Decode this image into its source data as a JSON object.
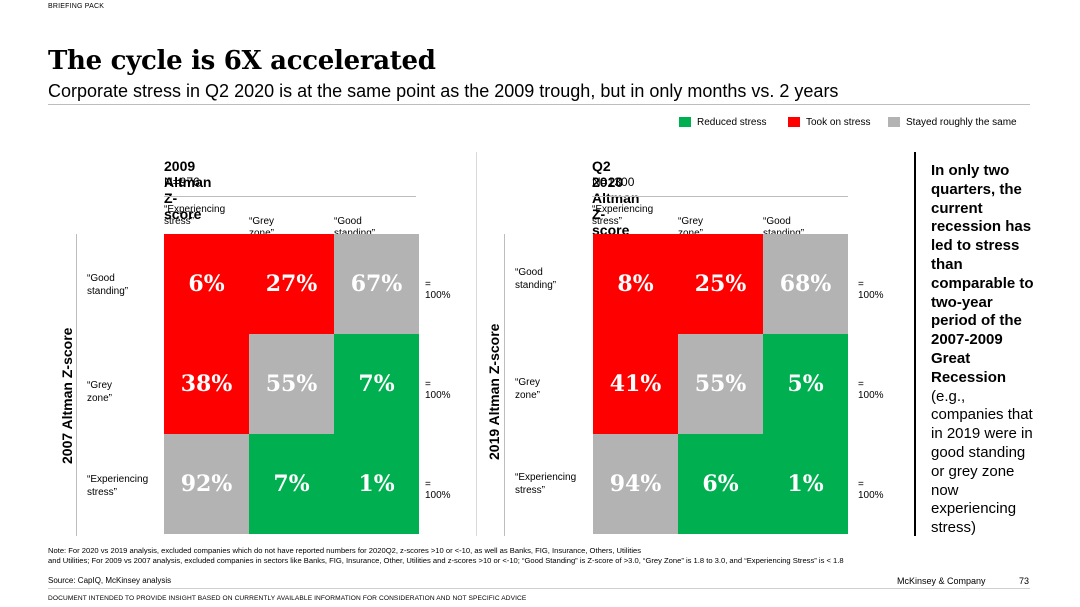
{
  "header": {
    "tag": "BRIEFING PACK",
    "title": "The cycle is 6X accelerated",
    "subtitle": "Corporate stress in Q2 2020 is at the same point as the 2009 trough, but in only months vs. 2 years"
  },
  "legend": {
    "reduced": {
      "label": "Reduced stress",
      "color": "#00b050"
    },
    "took": {
      "label": "Took on stress",
      "color": "#ff0000"
    },
    "same": {
      "label": "Stayed roughly the same",
      "color": "#b3b3b3"
    }
  },
  "matrices": [
    {
      "title": "2009 Altman Z-score",
      "n": "N=976",
      "col_headers": [
        "“Experiencing stress”",
        "“Grey zone”",
        "“Good standing”"
      ],
      "col_header_lines": [
        [
          "“Experiencing",
          "stress”"
        ],
        [
          "“Grey zone”"
        ],
        [
          "“Good standing”"
        ]
      ],
      "row_axis": "2007 Altman Z-score",
      "row_labels": [
        [
          "“Good",
          "standing”"
        ],
        [
          "“Grey zone”"
        ],
        [
          "“Experiencing",
          "stress”"
        ]
      ],
      "cells": [
        [
          {
            "v": "6%",
            "c": "took"
          },
          {
            "v": "27%",
            "c": "took"
          },
          {
            "v": "67%",
            "c": "same"
          }
        ],
        [
          {
            "v": "38%",
            "c": "took"
          },
          {
            "v": "55%",
            "c": "same"
          },
          {
            "v": "7%",
            "c": "reduced"
          }
        ],
        [
          {
            "v": "92%",
            "c": "same"
          },
          {
            "v": "7%",
            "c": "reduced"
          },
          {
            "v": "1%",
            "c": "reduced"
          }
        ]
      ],
      "row_totals": [
        "= 100%",
        "= 100%",
        "= 100%"
      ]
    },
    {
      "title": "Q2 2020 Altman Z-score",
      "n": "N=1300",
      "col_headers": [
        "“Experiencing stress”",
        "“Grey zone”",
        "“Good standing”"
      ],
      "col_header_lines": [
        [
          "“Experiencing",
          "stress”"
        ],
        [
          "“Grey zone”"
        ],
        [
          "“Good standing”"
        ]
      ],
      "row_axis": "2019 Altman Z-score",
      "row_labels": [
        [
          "“Good",
          "standing”"
        ],
        [
          "“Grey zone”"
        ],
        [
          "“Experiencing",
          "stress”"
        ]
      ],
      "cells": [
        [
          {
            "v": "8%",
            "c": "took"
          },
          {
            "v": "25%",
            "c": "took"
          },
          {
            "v": "68%",
            "c": "same"
          }
        ],
        [
          {
            "v": "41%",
            "c": "took"
          },
          {
            "v": "55%",
            "c": "same"
          },
          {
            "v": "5%",
            "c": "reduced"
          }
        ],
        [
          {
            "v": "94%",
            "c": "same"
          },
          {
            "v": "6%",
            "c": "reduced"
          },
          {
            "v": "1%",
            "c": "reduced"
          }
        ]
      ],
      "row_totals": [
        "= 100%",
        "= 100%",
        "= 100%"
      ]
    }
  ],
  "callout": {
    "bold": "In only two quarters, the current recession has led to stress than comparable to two-year period of the 2007-2009 Great Recession",
    "normal": " (e.g., companies that in 2019 were in good standing or grey zone now experiencing stress)"
  },
  "footer": {
    "note": "Note: For 2020 vs 2019 analysis, excluded companies which do not have reported numbers for 2020Q2, z-scores >10 or <-10, as well as Banks, FIG, Insurance, Others, Utilities",
    "note2": "and Utilities; For 2009 vs 2007 analysis, excluded companies in sectors like Banks, FIG, Insurance, Other, Utilities and z-scores >10 or <-10; “Good Standing” is Z-score of >3.0, “Grey Zone” is 1.8 to 3.0, and “Experiencing Stress” is < 1.8",
    "source": "Source: CapIQ, McKinsey analysis",
    "brand": "McKinsey & Company",
    "page": "73",
    "disclaimer": "DOCUMENT INTENDED TO PROVIDE INSIGHT BASED ON CURRENTLY AVAILABLE INFORMATION FOR CONSIDERATION AND NOT SPECIFIC ADVICE"
  }
}
